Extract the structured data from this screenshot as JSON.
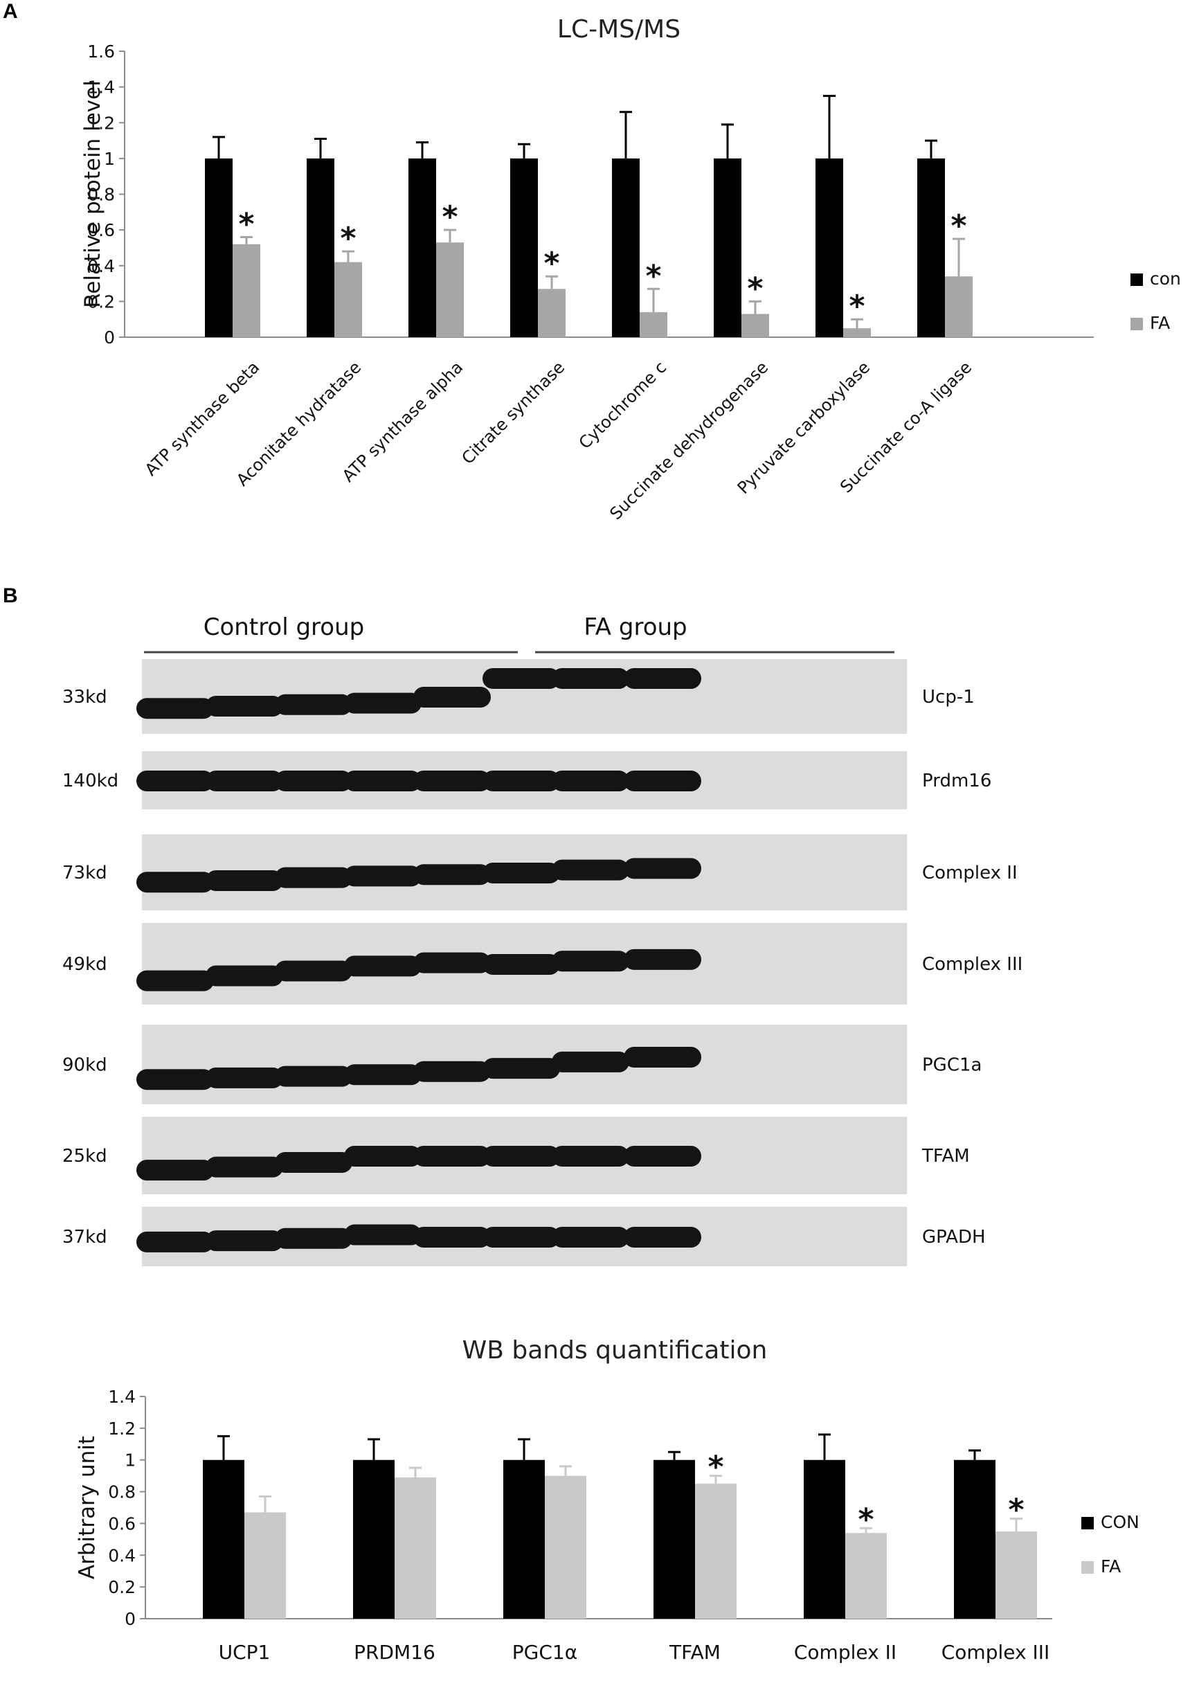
{
  "panel_labels": {
    "a": "A",
    "b": "B"
  },
  "colors": {
    "con": "#000000",
    "fa_a": "#a6a6a6",
    "fa_b": "#c9c9c9",
    "axis": "#8c8c8c",
    "blot_bg": "#dcdcdc",
    "band": "#141414"
  },
  "chart_data": [
    {
      "type": "bar",
      "title": "LC-MS/MS",
      "xlabel": "",
      "ylabel": "Relative protein level",
      "ylim": [
        0,
        1.6
      ],
      "yticks": [
        0,
        0.2,
        0.4,
        0.6,
        0.8,
        1,
        1.2,
        1.4,
        1.6
      ],
      "ytick_labels": [
        "0",
        "0.2",
        "0.4",
        "0.6",
        "0.8",
        "1",
        "1.2",
        "1.4",
        "1.6"
      ],
      "categories": [
        "ATP synthase beta",
        "Aconitate hydratase",
        "ATP synthase alpha",
        "Citrate synthase",
        "Cytochrome c",
        "Succinate dehydrogenase",
        "Pyruvate carboxylase",
        "Succinate co-A ligase"
      ],
      "series": [
        {
          "name": "con",
          "values": [
            1,
            1,
            1,
            1,
            1,
            1,
            1,
            1
          ],
          "errors": [
            0.12,
            0.11,
            0.09,
            0.08,
            0.26,
            0.19,
            0.35,
            0.1
          ]
        },
        {
          "name": "FA",
          "values": [
            0.52,
            0.42,
            0.53,
            0.27,
            0.14,
            0.13,
            0.05,
            0.34
          ],
          "errors": [
            0.04,
            0.06,
            0.07,
            0.07,
            0.13,
            0.07,
            0.05,
            0.21
          ]
        }
      ],
      "significance": [
        "*",
        "*",
        "*",
        "*",
        "*",
        "*",
        "*",
        "*"
      ],
      "legend_position": "right"
    },
    {
      "type": "bar",
      "title": "WB bands quantification",
      "xlabel": "",
      "ylabel": "Arbitrary unit",
      "ylim": [
        0,
        1.4
      ],
      "yticks": [
        0,
        0.2,
        0.4,
        0.6,
        0.8,
        1,
        1.2,
        1.4
      ],
      "ytick_labels": [
        "0",
        "0.2",
        "0.4",
        "0.6",
        "0.8",
        "1",
        "1.2",
        "1.4"
      ],
      "categories": [
        "UCP1",
        "PRDM16",
        "PGC1α",
        "TFAM",
        "Complex II",
        "Complex III"
      ],
      "series": [
        {
          "name": "CON",
          "values": [
            1,
            1,
            1,
            1,
            1,
            1
          ],
          "errors": [
            0.15,
            0.13,
            0.13,
            0.05,
            0.16,
            0.06
          ]
        },
        {
          "name": "FA",
          "values": [
            0.67,
            0.89,
            0.9,
            0.85,
            0.54,
            0.55
          ],
          "errors": [
            0.1,
            0.06,
            0.06,
            0.05,
            0.03,
            0.08
          ]
        }
      ],
      "significance": [
        "",
        "",
        "",
        "*",
        "*",
        "*"
      ],
      "legend_position": "right"
    }
  ],
  "western_blot": {
    "groups": [
      "Control group",
      "FA  group"
    ],
    "rows": [
      {
        "kd": "33kd",
        "protein": "Ucp-1",
        "band_offsets": [
          0.15,
          0.12,
          0.1,
          0.08,
          0.0,
          -0.25,
          -0.25,
          -0.25
        ]
      },
      {
        "kd": "140kd",
        "protein": "Prdm16",
        "band_offsets": [
          0,
          0,
          0,
          0,
          0,
          0,
          0,
          0
        ]
      },
      {
        "kd": "73kd",
        "protein": "Complex II",
        "band_offsets": [
          0.12,
          0.1,
          0.06,
          0.04,
          0.02,
          0.0,
          -0.04,
          -0.06
        ]
      },
      {
        "kd": "49kd",
        "protein": "Complex III",
        "band_offsets": [
          0.2,
          0.14,
          0.08,
          0.02,
          -0.02,
          0.0,
          -0.04,
          -0.06
        ]
      },
      {
        "kd": "90kd",
        "protein": "PGC1a",
        "band_offsets": [
          0.18,
          0.16,
          0.14,
          0.12,
          0.08,
          0.04,
          -0.04,
          -0.1
        ]
      },
      {
        "kd": "25kd",
        "protein": "TFAM",
        "band_offsets": [
          0.18,
          0.14,
          0.08,
          0.0,
          0.0,
          0.0,
          0.0,
          0.0
        ]
      },
      {
        "kd": "37kd",
        "protein": "GPADH",
        "band_offsets": [
          0.08,
          0.06,
          0.02,
          -0.04,
          0.0,
          0.0,
          0.0,
          0.0
        ]
      }
    ]
  }
}
